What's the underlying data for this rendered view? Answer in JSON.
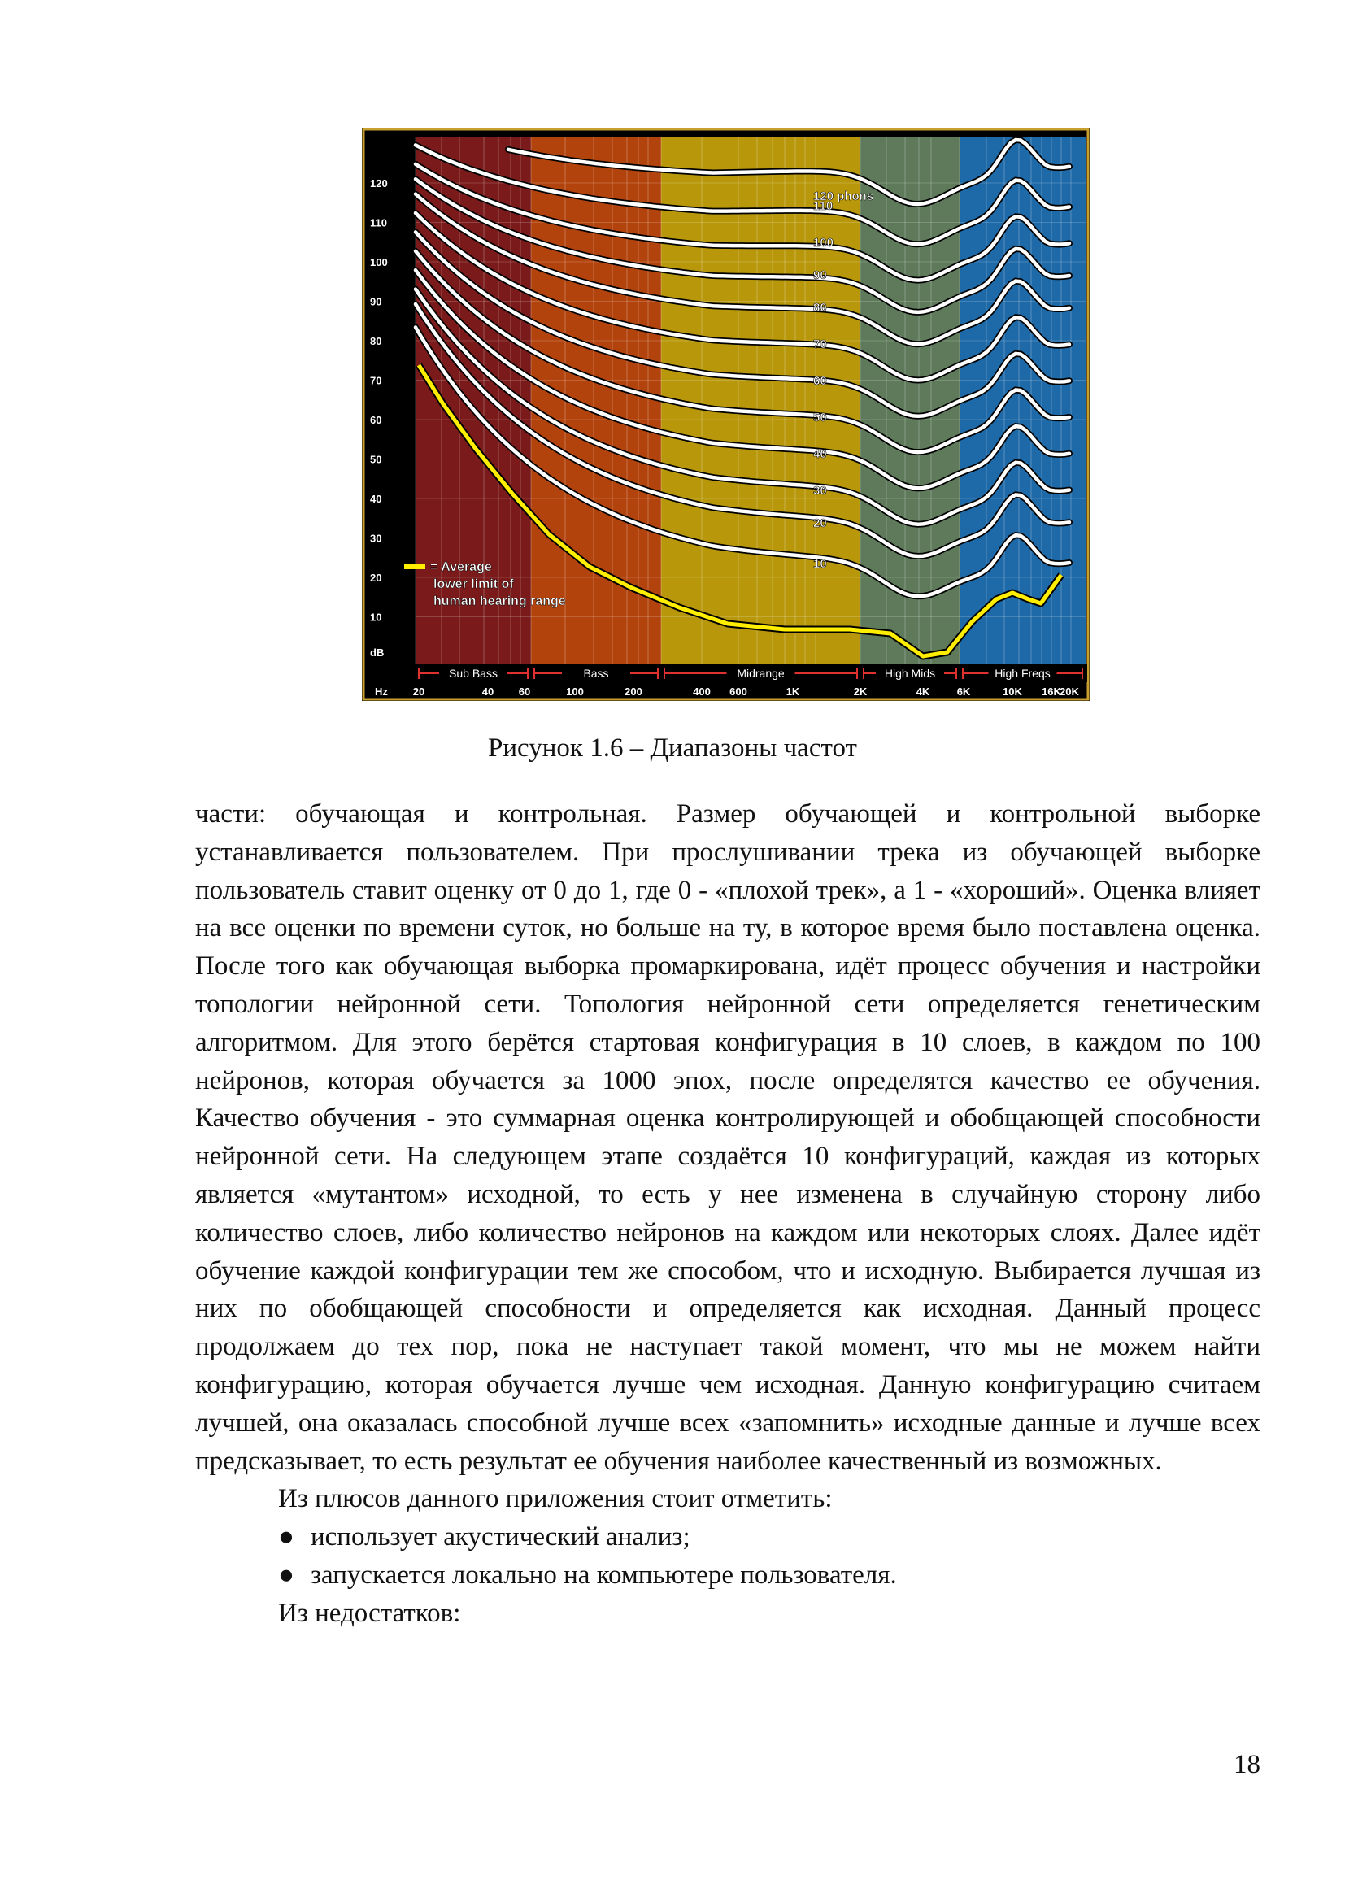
{
  "figure": {
    "chart_data": {
      "type": "line",
      "x_ticks_hz": [
        "Hz",
        "20",
        "40",
        "60",
        "100",
        "200",
        "400",
        "600",
        "1K",
        "2K",
        "4K",
        "6K",
        "10K",
        "16K",
        "20K"
      ],
      "y_ticks_db": [
        "120",
        "110",
        "100",
        "90",
        "80",
        "70",
        "60",
        "50",
        "40",
        "30",
        "20",
        "10",
        "dB"
      ],
      "bands": [
        {
          "name": "Sub Bass",
          "color": "#7a1a1a"
        },
        {
          "name": "Bass",
          "color": "#b3430c"
        },
        {
          "name": "Midrange",
          "color": "#b8980a"
        },
        {
          "name": "High Mids",
          "color": "#5e7a5a"
        },
        {
          "name": "High Freqs",
          "color": "#1e6aa8"
        }
      ],
      "curve_labels": [
        "120 phons",
        "110",
        "100",
        "90",
        "80",
        "70",
        "60",
        "50",
        "40",
        "30",
        "20",
        "10"
      ],
      "legend_lines": [
        "= Average",
        "lower limit of",
        "human hearing range"
      ],
      "threshold_color": "#ffee00",
      "curve_color": "#ffffff"
    }
  },
  "caption": "Рисунок 1.6 – Диапазоны частот",
  "paragraphs": [
    "части: обучающая и контрольная. Размер обучающей и контрольной выборке устанавливается пользователем. При прослушивании трека из обучающей выборке пользователь ставит оценку от 0 до 1, где 0 - «плохой трек», а 1 - «хороший». Оценка влияет на все оценки по времени суток, но больше на ту, в которое время было поставлена оценка. После того как обучающая выборка промаркирована, идёт процесс обучения и настройки топологии нейронной сети. Топология нейронной сети определяется генетическим алгоритмом. Для этого берётся стартовая конфигурация в 10 слоев, в каждом по 100 нейронов, которая обучается за 1000 эпох, после определятся качество ее обучения. Качество обучения - это суммарная оценка контролирующей и обобщающей способности нейронной сети. На следующем этапе создаётся 10 конфигураций, каждая из которых является «мутантом» исходной, то есть у нее изменена в случайную сторону либо количество слоев, либо количество нейронов на каждом или некоторых слоях. Далее идёт обучение каждой конфигурации тем же способом, что и исходную. Выбирается лучшая из них по обобщающей способности и определяется как исходная. Данный процесс продолжаем до тех пор, пока не наступает такой момент, что мы не можем найти конфигурацию, которая обучается лучше чем исходная. Данную конфигурацию считаем лучшей, она оказалась способной лучше всех «запомнить» исходные данные и лучше всех предсказывает, то есть результат ее обучения наиболее качественный из возможных."
  ],
  "pros_intro": "Из плюсов данного приложения стоит отметить:",
  "pros": [
    "использует акустический анализ;",
    "запускается локально на компьютере пользователя."
  ],
  "cons_intro": "Из недостатков:",
  "bullet_glyph": "●",
  "page_number": "18"
}
